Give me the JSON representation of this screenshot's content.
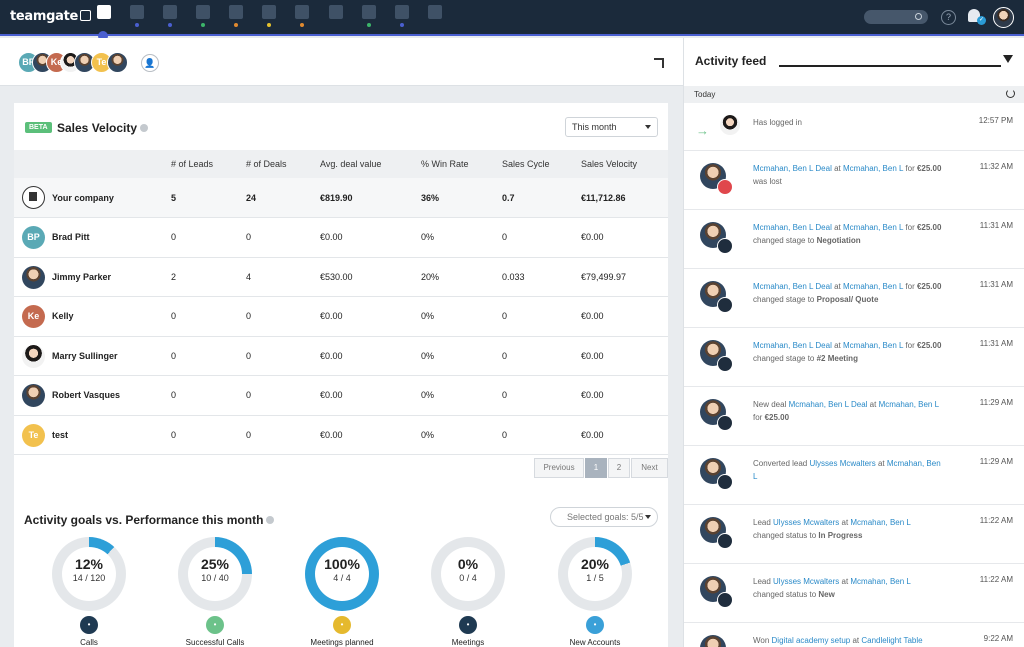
{
  "app": {
    "logo": "teamgate"
  },
  "people_bar": {
    "avatars": [
      {
        "initials": "BP",
        "color": "#5aa9b5"
      },
      {
        "initials": "",
        "color": ""
      },
      {
        "initials": "Ke",
        "color": "#c46a4f"
      },
      {
        "initials": "",
        "color": ""
      },
      {
        "initials": "",
        "color": ""
      },
      {
        "initials": "Te",
        "color": "#f2c14e"
      },
      {
        "initials": "",
        "color": ""
      }
    ]
  },
  "velocity": {
    "badge": "BETA",
    "title": "Sales Velocity",
    "period": "This month",
    "columns": [
      "# of Leads",
      "# of Deals",
      "Avg. deal value",
      "% Win Rate",
      "Sales Cycle",
      "Sales Velocity"
    ],
    "rows": [
      {
        "name": "Your company",
        "avatar": "company",
        "leads": "5",
        "deals": "24",
        "avg": "€819.90",
        "win": "36%",
        "cycle": "0.7",
        "velocity": "€11,712.86"
      },
      {
        "name": "Brad Pitt",
        "avatar": "BP",
        "color": "#5aa9b5",
        "leads": "0",
        "deals": "0",
        "avg": "€0.00",
        "win": "0%",
        "cycle": "0",
        "velocity": "€0.00"
      },
      {
        "name": "Jimmy Parker",
        "avatar": "photo",
        "leads": "2",
        "deals": "4",
        "avg": "€530.00",
        "win": "20%",
        "cycle": "0.033",
        "velocity": "€79,499.97"
      },
      {
        "name": "Kelly",
        "avatar": "Ke",
        "color": "#c46a4f",
        "leads": "0",
        "deals": "0",
        "avg": "€0.00",
        "win": "0%",
        "cycle": "0",
        "velocity": "€0.00"
      },
      {
        "name": "Marry Sullinger",
        "avatar": "photo-f",
        "leads": "0",
        "deals": "0",
        "avg": "€0.00",
        "win": "0%",
        "cycle": "0",
        "velocity": "€0.00"
      },
      {
        "name": "Robert Vasques",
        "avatar": "photo",
        "leads": "0",
        "deals": "0",
        "avg": "€0.00",
        "win": "0%",
        "cycle": "0",
        "velocity": "€0.00"
      },
      {
        "name": "test",
        "avatar": "Te",
        "color": "#f2c14e",
        "leads": "0",
        "deals": "0",
        "avg": "€0.00",
        "win": "0%",
        "cycle": "0",
        "velocity": "€0.00"
      }
    ],
    "pagination": {
      "prev": "Previous",
      "pages": [
        "1",
        "2"
      ],
      "current": "1",
      "next": "Next"
    }
  },
  "goals": {
    "title": "Activity goals vs. Performance this month",
    "selected": "Selected goals: 5/5",
    "items": [
      {
        "pct": "12%",
        "fraction": "14 / 120",
        "progress": 0.12,
        "label": "Calls",
        "icon_color": "#1f3a52",
        "icon": "phone-icon"
      },
      {
        "pct": "25%",
        "fraction": "10 / 40",
        "progress": 0.25,
        "label": "Successful Calls",
        "icon_color": "#6cc28a",
        "icon": "phone-icon"
      },
      {
        "pct": "100%",
        "fraction": "4 / 4",
        "progress": 1.0,
        "label": "Meetings planned",
        "icon_color": "#e5b92e",
        "icon": "calendar-icon"
      },
      {
        "pct": "0%",
        "fraction": "0 / 4",
        "progress": 0.0,
        "label": "Meetings",
        "icon_color": "#1f3a52",
        "icon": "cup-icon"
      },
      {
        "pct": "20%",
        "fraction": "1 / 5",
        "progress": 0.2,
        "label": "New Accounts",
        "icon_color": "#3aa0d8",
        "icon": "building-icon"
      }
    ],
    "accent": "#2d9fd8"
  },
  "feed": {
    "title": "Activity feed",
    "day": "Today",
    "items": [
      {
        "parts": [
          {
            "t": "Has logged in"
          }
        ],
        "time": "12:57 PM",
        "type": "login"
      },
      {
        "parts": [
          {
            "t": "Mcmahan, Ben L Deal",
            "l": true
          },
          {
            "t": " at "
          },
          {
            "t": "Mcmahan, Ben L",
            "l": true
          },
          {
            "t": " for "
          },
          {
            "t": "€25.00",
            "b": true
          },
          {
            "t": " was lost"
          }
        ],
        "time": "11:32 AM",
        "type": "lost"
      },
      {
        "parts": [
          {
            "t": "Mcmahan, Ben L Deal",
            "l": true
          },
          {
            "t": " at "
          },
          {
            "t": "Mcmahan, Ben L",
            "l": true
          },
          {
            "t": " for "
          },
          {
            "t": "€25.00",
            "b": true
          },
          {
            "t": " changed stage to "
          },
          {
            "t": "Negotiation",
            "b": true
          }
        ],
        "time": "11:31 AM",
        "type": "deal"
      },
      {
        "parts": [
          {
            "t": "Mcmahan, Ben L Deal",
            "l": true
          },
          {
            "t": " at "
          },
          {
            "t": "Mcmahan, Ben L",
            "l": true
          },
          {
            "t": " for "
          },
          {
            "t": "€25.00",
            "b": true
          },
          {
            "t": " changed stage to "
          },
          {
            "t": "Proposal/ Quote",
            "b": true
          }
        ],
        "time": "11:31 AM",
        "type": "deal"
      },
      {
        "parts": [
          {
            "t": "Mcmahan, Ben L Deal",
            "l": true
          },
          {
            "t": " at "
          },
          {
            "t": "Mcmahan, Ben L",
            "l": true
          },
          {
            "t": " for "
          },
          {
            "t": "€25.00",
            "b": true
          },
          {
            "t": " changed stage to "
          },
          {
            "t": "#2 Meeting",
            "b": true
          }
        ],
        "time": "11:31 AM",
        "type": "deal"
      },
      {
        "parts": [
          {
            "t": "New deal "
          },
          {
            "t": "Mcmahan, Ben L Deal",
            "l": true
          },
          {
            "t": " at "
          },
          {
            "t": "Mcmahan, Ben L",
            "l": true
          },
          {
            "t": " for "
          },
          {
            "t": "€25.00",
            "b": true
          }
        ],
        "time": "11:29 AM",
        "type": "deal"
      },
      {
        "parts": [
          {
            "t": "Converted lead "
          },
          {
            "t": "Ulysses Mcwalters",
            "l": true
          },
          {
            "t": " at "
          },
          {
            "t": "Mcmahan, Ben L",
            "l": true
          }
        ],
        "time": "11:29 AM",
        "type": "lead"
      },
      {
        "parts": [
          {
            "t": "Lead "
          },
          {
            "t": "Ulysses Mcwalters",
            "l": true
          },
          {
            "t": " at "
          },
          {
            "t": "Mcmahan, Ben L",
            "l": true
          },
          {
            "t": " changed status to "
          },
          {
            "t": "In Progress",
            "b": true
          }
        ],
        "time": "11:22 AM",
        "type": "lead"
      },
      {
        "parts": [
          {
            "t": "Lead "
          },
          {
            "t": "Ulysses Mcwalters",
            "l": true
          },
          {
            "t": " at "
          },
          {
            "t": "Mcmahan, Ben L",
            "l": true
          },
          {
            "t": " changed status to "
          },
          {
            "t": "New",
            "b": true
          }
        ],
        "time": "11:22 AM",
        "type": "lead"
      },
      {
        "parts": [
          {
            "t": "Won "
          },
          {
            "t": "Digital academy setup",
            "l": true
          },
          {
            "t": " at "
          },
          {
            "t": "Candlelight Table",
            "l": true
          }
        ],
        "time": "9:22 AM",
        "type": "deal"
      }
    ]
  }
}
